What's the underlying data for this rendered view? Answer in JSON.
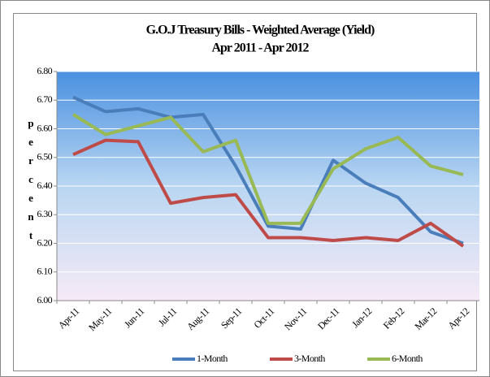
{
  "chart_data": {
    "type": "line",
    "title": "G.O.J Treasury Bills - Weighted Average (Yield)",
    "subtitle": "Apr 2011 - Apr 2012",
    "ylabel": "percent",
    "categories": [
      "Apr-11",
      "May-11",
      "Jun-11",
      "Jul-11",
      "Aug-11",
      "Sep-11",
      "Oct-11",
      "Nov-11",
      "Dec-11",
      "Jan-12",
      "Feb-12",
      "Mar-12",
      "Apr-12"
    ],
    "series": [
      {
        "name": "1-Month",
        "color": "#4a7ebb",
        "values": [
          6.71,
          6.66,
          6.67,
          6.64,
          6.65,
          6.47,
          6.26,
          6.25,
          6.49,
          6.41,
          6.36,
          6.24,
          6.2
        ]
      },
      {
        "name": "3-Month",
        "color": "#be4b48",
        "values": [
          6.51,
          6.56,
          6.555,
          6.34,
          6.36,
          6.37,
          6.22,
          6.22,
          6.21,
          6.22,
          6.21,
          6.27,
          6.19
        ]
      },
      {
        "name": "6-Month",
        "color": "#98b954",
        "values": [
          6.65,
          6.58,
          6.61,
          6.64,
          6.52,
          6.56,
          6.27,
          6.27,
          6.46,
          6.53,
          6.57,
          6.47,
          6.44
        ]
      }
    ],
    "ylim": [
      6.0,
      6.8
    ],
    "yticks": [
      {
        "value": 6.0,
        "label": "6.00"
      },
      {
        "value": 6.1,
        "label": "6.10"
      },
      {
        "value": 6.2,
        "label": "6.20"
      },
      {
        "value": 6.3,
        "label": "6.30"
      },
      {
        "value": 6.4,
        "label": "6.40"
      },
      {
        "value": 6.5,
        "label": "6.50"
      },
      {
        "value": 6.6,
        "label": "6.60"
      },
      {
        "value": 6.7,
        "label": "6.70"
      },
      {
        "value": 6.8,
        "label": "6.80"
      }
    ],
    "grid": true,
    "legend": "bottom"
  }
}
